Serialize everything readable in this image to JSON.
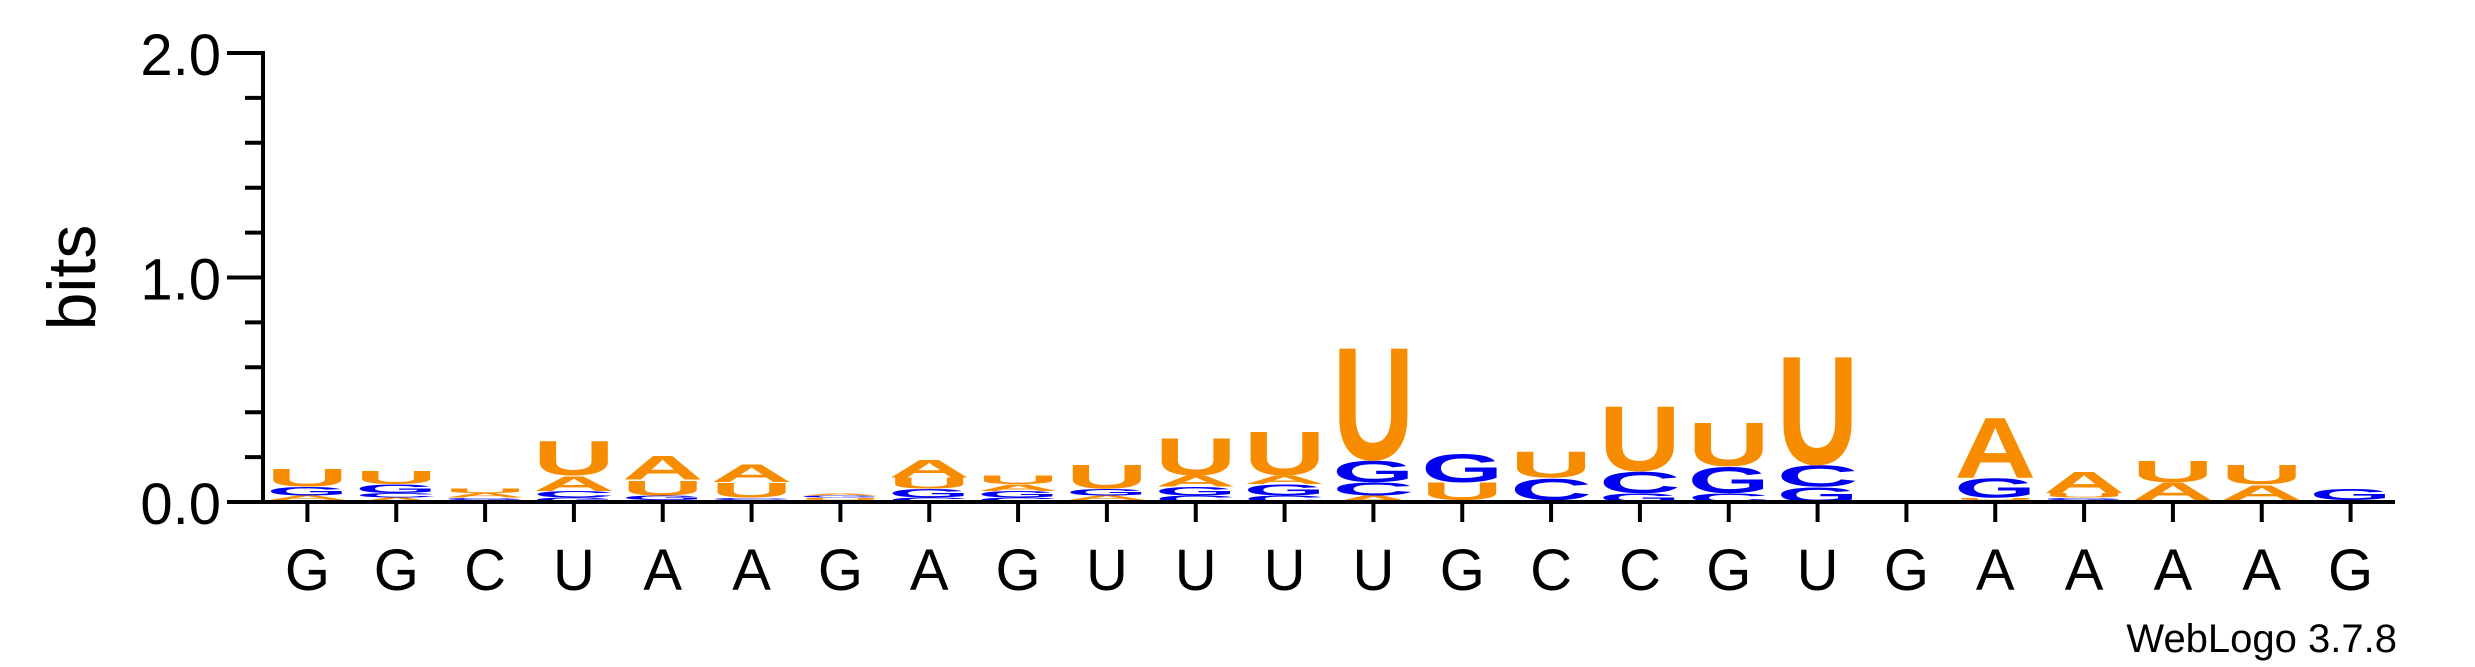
{
  "chart_data": {
    "type": "sequence-logo",
    "title": "",
    "ylabel": "bits",
    "ylim": [
      0,
      2.0
    ],
    "yticks": [
      {
        "value": 0,
        "label": "0.0"
      },
      {
        "value": 1.0,
        "label": "1.0"
      },
      {
        "value": 2.0,
        "label": "2.0"
      }
    ],
    "credit": "WebLogo 3.7.8",
    "colors": {
      "A": "#f78c00",
      "U": "#f78c00",
      "G": "#0000f0",
      "C": "#0000f0"
    },
    "positions": [
      {
        "label": "G",
        "stack": [
          {
            "letter": "C",
            "bits": 0.01
          },
          {
            "letter": "A",
            "bits": 0.02
          },
          {
            "letter": "G",
            "bits": 0.04
          },
          {
            "letter": "U",
            "bits": 0.08
          }
        ]
      },
      {
        "label": "G",
        "stack": [
          {
            "letter": "A",
            "bits": 0.02
          },
          {
            "letter": "C",
            "bits": 0.02
          },
          {
            "letter": "G",
            "bits": 0.04
          },
          {
            "letter": "U",
            "bits": 0.06
          }
        ]
      },
      {
        "label": "C",
        "stack": [
          {
            "letter": "C",
            "bits": 0.01
          },
          {
            "letter": "G",
            "bits": 0.01
          },
          {
            "letter": "A",
            "bits": 0.02
          },
          {
            "letter": "U",
            "bits": 0.02
          }
        ]
      },
      {
        "label": "U",
        "stack": [
          {
            "letter": "G",
            "bits": 0.02
          },
          {
            "letter": "C",
            "bits": 0.03
          },
          {
            "letter": "A",
            "bits": 0.07
          },
          {
            "letter": "U",
            "bits": 0.16
          }
        ]
      },
      {
        "label": "A",
        "stack": [
          {
            "letter": "C",
            "bits": 0.01
          },
          {
            "letter": "G",
            "bits": 0.02
          },
          {
            "letter": "U",
            "bits": 0.07
          },
          {
            "letter": "A",
            "bits": 0.11
          }
        ]
      },
      {
        "label": "A",
        "stack": [
          {
            "letter": "G",
            "bits": 0.01
          },
          {
            "letter": "C",
            "bits": 0.01
          },
          {
            "letter": "U",
            "bits": 0.07
          },
          {
            "letter": "A",
            "bits": 0.08
          }
        ]
      },
      {
        "label": "G",
        "stack": [
          {
            "letter": "C",
            "bits": 0.01
          },
          {
            "letter": "U",
            "bits": 0.01
          },
          {
            "letter": "G",
            "bits": 0.01
          },
          {
            "letter": "A",
            "bits": 0.01
          }
        ]
      },
      {
        "label": "A",
        "stack": [
          {
            "letter": "C",
            "bits": 0.02
          },
          {
            "letter": "G",
            "bits": 0.04
          },
          {
            "letter": "U",
            "bits": 0.05
          },
          {
            "letter": "A",
            "bits": 0.08
          }
        ]
      },
      {
        "label": "G",
        "stack": [
          {
            "letter": "C",
            "bits": 0.02
          },
          {
            "letter": "G",
            "bits": 0.03
          },
          {
            "letter": "A",
            "bits": 0.03
          },
          {
            "letter": "U",
            "bits": 0.04
          }
        ]
      },
      {
        "label": "U",
        "stack": [
          {
            "letter": "C",
            "bits": 0.01
          },
          {
            "letter": "A",
            "bits": 0.02
          },
          {
            "letter": "G",
            "bits": 0.03
          },
          {
            "letter": "U",
            "bits": 0.11
          }
        ]
      },
      {
        "label": "U",
        "stack": [
          {
            "letter": "C",
            "bits": 0.03
          },
          {
            "letter": "G",
            "bits": 0.04
          },
          {
            "letter": "A",
            "bits": 0.05
          },
          {
            "letter": "U",
            "bits": 0.17
          }
        ]
      },
      {
        "label": "U",
        "stack": [
          {
            "letter": "C",
            "bits": 0.03
          },
          {
            "letter": "G",
            "bits": 0.05
          },
          {
            "letter": "A",
            "bits": 0.04
          },
          {
            "letter": "U",
            "bits": 0.2
          }
        ]
      },
      {
        "label": "U",
        "stack": [
          {
            "letter": "A",
            "bits": 0.03
          },
          {
            "letter": "C",
            "bits": 0.06
          },
          {
            "letter": "G",
            "bits": 0.1
          },
          {
            "letter": "U",
            "bits": 0.52
          }
        ]
      },
      {
        "label": "G",
        "stack": [
          {
            "letter": "C",
            "bits": 0.01
          },
          {
            "letter": "U",
            "bits": 0.08
          },
          {
            "letter": "G",
            "bits": 0.13
          }
        ]
      },
      {
        "label": "C",
        "stack": [
          {
            "letter": "G",
            "bits": 0.01
          },
          {
            "letter": "C",
            "bits": 0.1
          },
          {
            "letter": "U",
            "bits": 0.12
          }
        ]
      },
      {
        "label": "C",
        "stack": [
          {
            "letter": "G",
            "bits": 0.04
          },
          {
            "letter": "C",
            "bits": 0.1
          },
          {
            "letter": "U",
            "bits": 0.3
          }
        ]
      },
      {
        "label": "G",
        "stack": [
          {
            "letter": "C",
            "bits": 0.04
          },
          {
            "letter": "G",
            "bits": 0.12
          },
          {
            "letter": "U",
            "bits": 0.2
          }
        ]
      },
      {
        "label": "U",
        "stack": [
          {
            "letter": "G",
            "bits": 0.07
          },
          {
            "letter": "C",
            "bits": 0.1
          },
          {
            "letter": "U",
            "bits": 0.5
          }
        ]
      },
      {
        "label": "G",
        "stack": []
      },
      {
        "label": "A",
        "stack": [
          {
            "letter": "C",
            "bits": 0.01
          },
          {
            "letter": "U",
            "bits": 0.01
          },
          {
            "letter": "G",
            "bits": 0.09
          },
          {
            "letter": "A",
            "bits": 0.28
          }
        ]
      },
      {
        "label": "A",
        "stack": [
          {
            "letter": "C",
            "bits": 0.01
          },
          {
            "letter": "G",
            "bits": 0.01
          },
          {
            "letter": "U",
            "bits": 0.02
          },
          {
            "letter": "A",
            "bits": 0.1
          }
        ]
      },
      {
        "label": "A",
        "stack": [
          {
            "letter": "G",
            "bits": 0.01
          },
          {
            "letter": "A",
            "bits": 0.08
          },
          {
            "letter": "U",
            "bits": 0.1
          }
        ]
      },
      {
        "label": "A",
        "stack": [
          {
            "letter": "G",
            "bits": 0.01
          },
          {
            "letter": "A",
            "bits": 0.07
          },
          {
            "letter": "U",
            "bits": 0.09
          }
        ]
      },
      {
        "label": "G",
        "stack": [
          {
            "letter": "A",
            "bits": 0.01
          },
          {
            "letter": "G",
            "bits": 0.05
          }
        ]
      }
    ]
  }
}
